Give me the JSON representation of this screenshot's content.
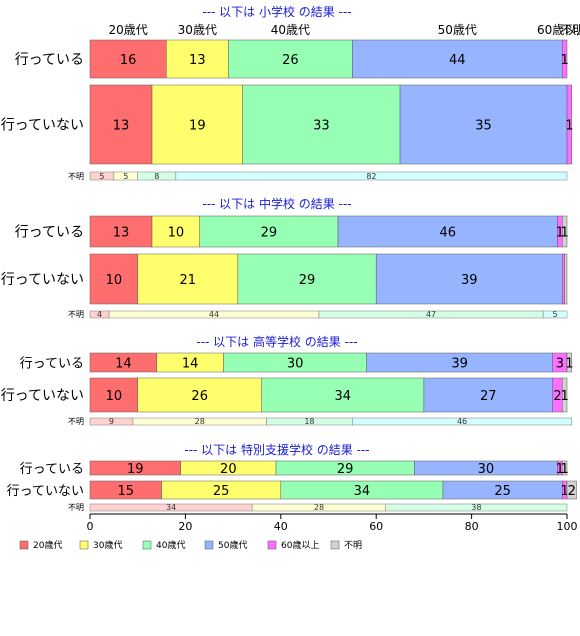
{
  "chart_data": {
    "type": "bar",
    "orientation": "horizontal",
    "stacked": "percent",
    "xlim": [
      0,
      100
    ],
    "x_ticks": [
      "0",
      "20",
      "40",
      "60",
      "80",
      "100"
    ],
    "top_age_labels": [
      "20歳代",
      "30歳代",
      "40歳代",
      "50歳代",
      "60歳以上",
      "不明"
    ],
    "legend": {
      "placement": "bottom-left",
      "entries": [
        {
          "name": "20歳代",
          "color": "#ff6e6e"
        },
        {
          "name": "30歳代",
          "color": "#ffff6e"
        },
        {
          "name": "40歳代",
          "color": "#96ffb4"
        },
        {
          "name": "50歳代",
          "color": "#96b4ff"
        },
        {
          "name": "60歳以上",
          "color": "#ff6eff"
        },
        {
          "name": "不明",
          "color": "#d2d2d2"
        }
      ]
    },
    "unknown_colors": [
      "#ffd2d2",
      "#ffffd2",
      "#d2ffe6",
      "#d2ffff"
    ],
    "groups": [
      {
        "title": "--- 以下は 小学校 の結果 ---",
        "bars": [
          {
            "label": "行っている",
            "values": [
              16,
              13,
              26,
              44,
              1,
              0
            ],
            "labels": [
              "16",
              "13",
              "26",
              "44",
              "1",
              ""
            ]
          },
          {
            "label": "行っていない",
            "values": [
              13,
              19,
              33,
              35,
              1,
              0
            ],
            "labels": [
              "13",
              "19",
              "33",
              "35",
              "1",
              ""
            ]
          }
        ],
        "unknown": {
          "label": "不明",
          "values": [
            5,
            5,
            8,
            82
          ],
          "labels": [
            "5",
            "5",
            "8",
            "82"
          ]
        }
      },
      {
        "title": "--- 以下は 中学校 の結果 ---",
        "bars": [
          {
            "label": "行っている",
            "values": [
              13,
              10,
              29,
              46,
              1,
              1
            ],
            "labels": [
              "13",
              "10",
              "29",
              "46",
              "1",
              "1"
            ]
          },
          {
            "label": "行っていない",
            "values": [
              10,
              21,
              29,
              39,
              0.5,
              0.5
            ],
            "labels": [
              "10",
              "21",
              "29",
              "39",
              "",
              ""
            ]
          }
        ],
        "unknown": {
          "label": "不明",
          "values": [
            4,
            44,
            47,
            5
          ],
          "labels": [
            "4",
            "44",
            "47",
            "5"
          ]
        }
      },
      {
        "title": "--- 以下は 高等学校 の結果 ---",
        "bars": [
          {
            "label": "行っている",
            "values": [
              14,
              14,
              30,
              39,
              3,
              1
            ],
            "labels": [
              "14",
              "14",
              "30",
              "39",
              "3",
              "1"
            ]
          },
          {
            "label": "行っていない",
            "values": [
              10,
              26,
              34,
              27,
              2,
              1
            ],
            "labels": [
              "10",
              "26",
              "34",
              "27",
              "2",
              "1"
            ]
          }
        ],
        "unknown": {
          "label": "不明",
          "values": [
            9,
            28,
            18,
            46
          ],
          "labels": [
            "9",
            "28",
            "18",
            "46"
          ]
        }
      },
      {
        "title": "--- 以下は 特別支援学校 の結果 ---",
        "bars": [
          {
            "label": "行っている",
            "values": [
              19,
              20,
              29,
              30,
              1,
              1
            ],
            "labels": [
              "19",
              "20",
              "29",
              "30",
              "1",
              "1"
            ]
          },
          {
            "label": "行っていない",
            "values": [
              15,
              25,
              34,
              25,
              1,
              2
            ],
            "labels": [
              "15",
              "25",
              "34",
              "25",
              "1",
              "2"
            ]
          }
        ],
        "unknown": {
          "label": "不明",
          "values": [
            34,
            28,
            38
          ],
          "labels": [
            "34",
            "28",
            "38"
          ]
        }
      }
    ]
  }
}
